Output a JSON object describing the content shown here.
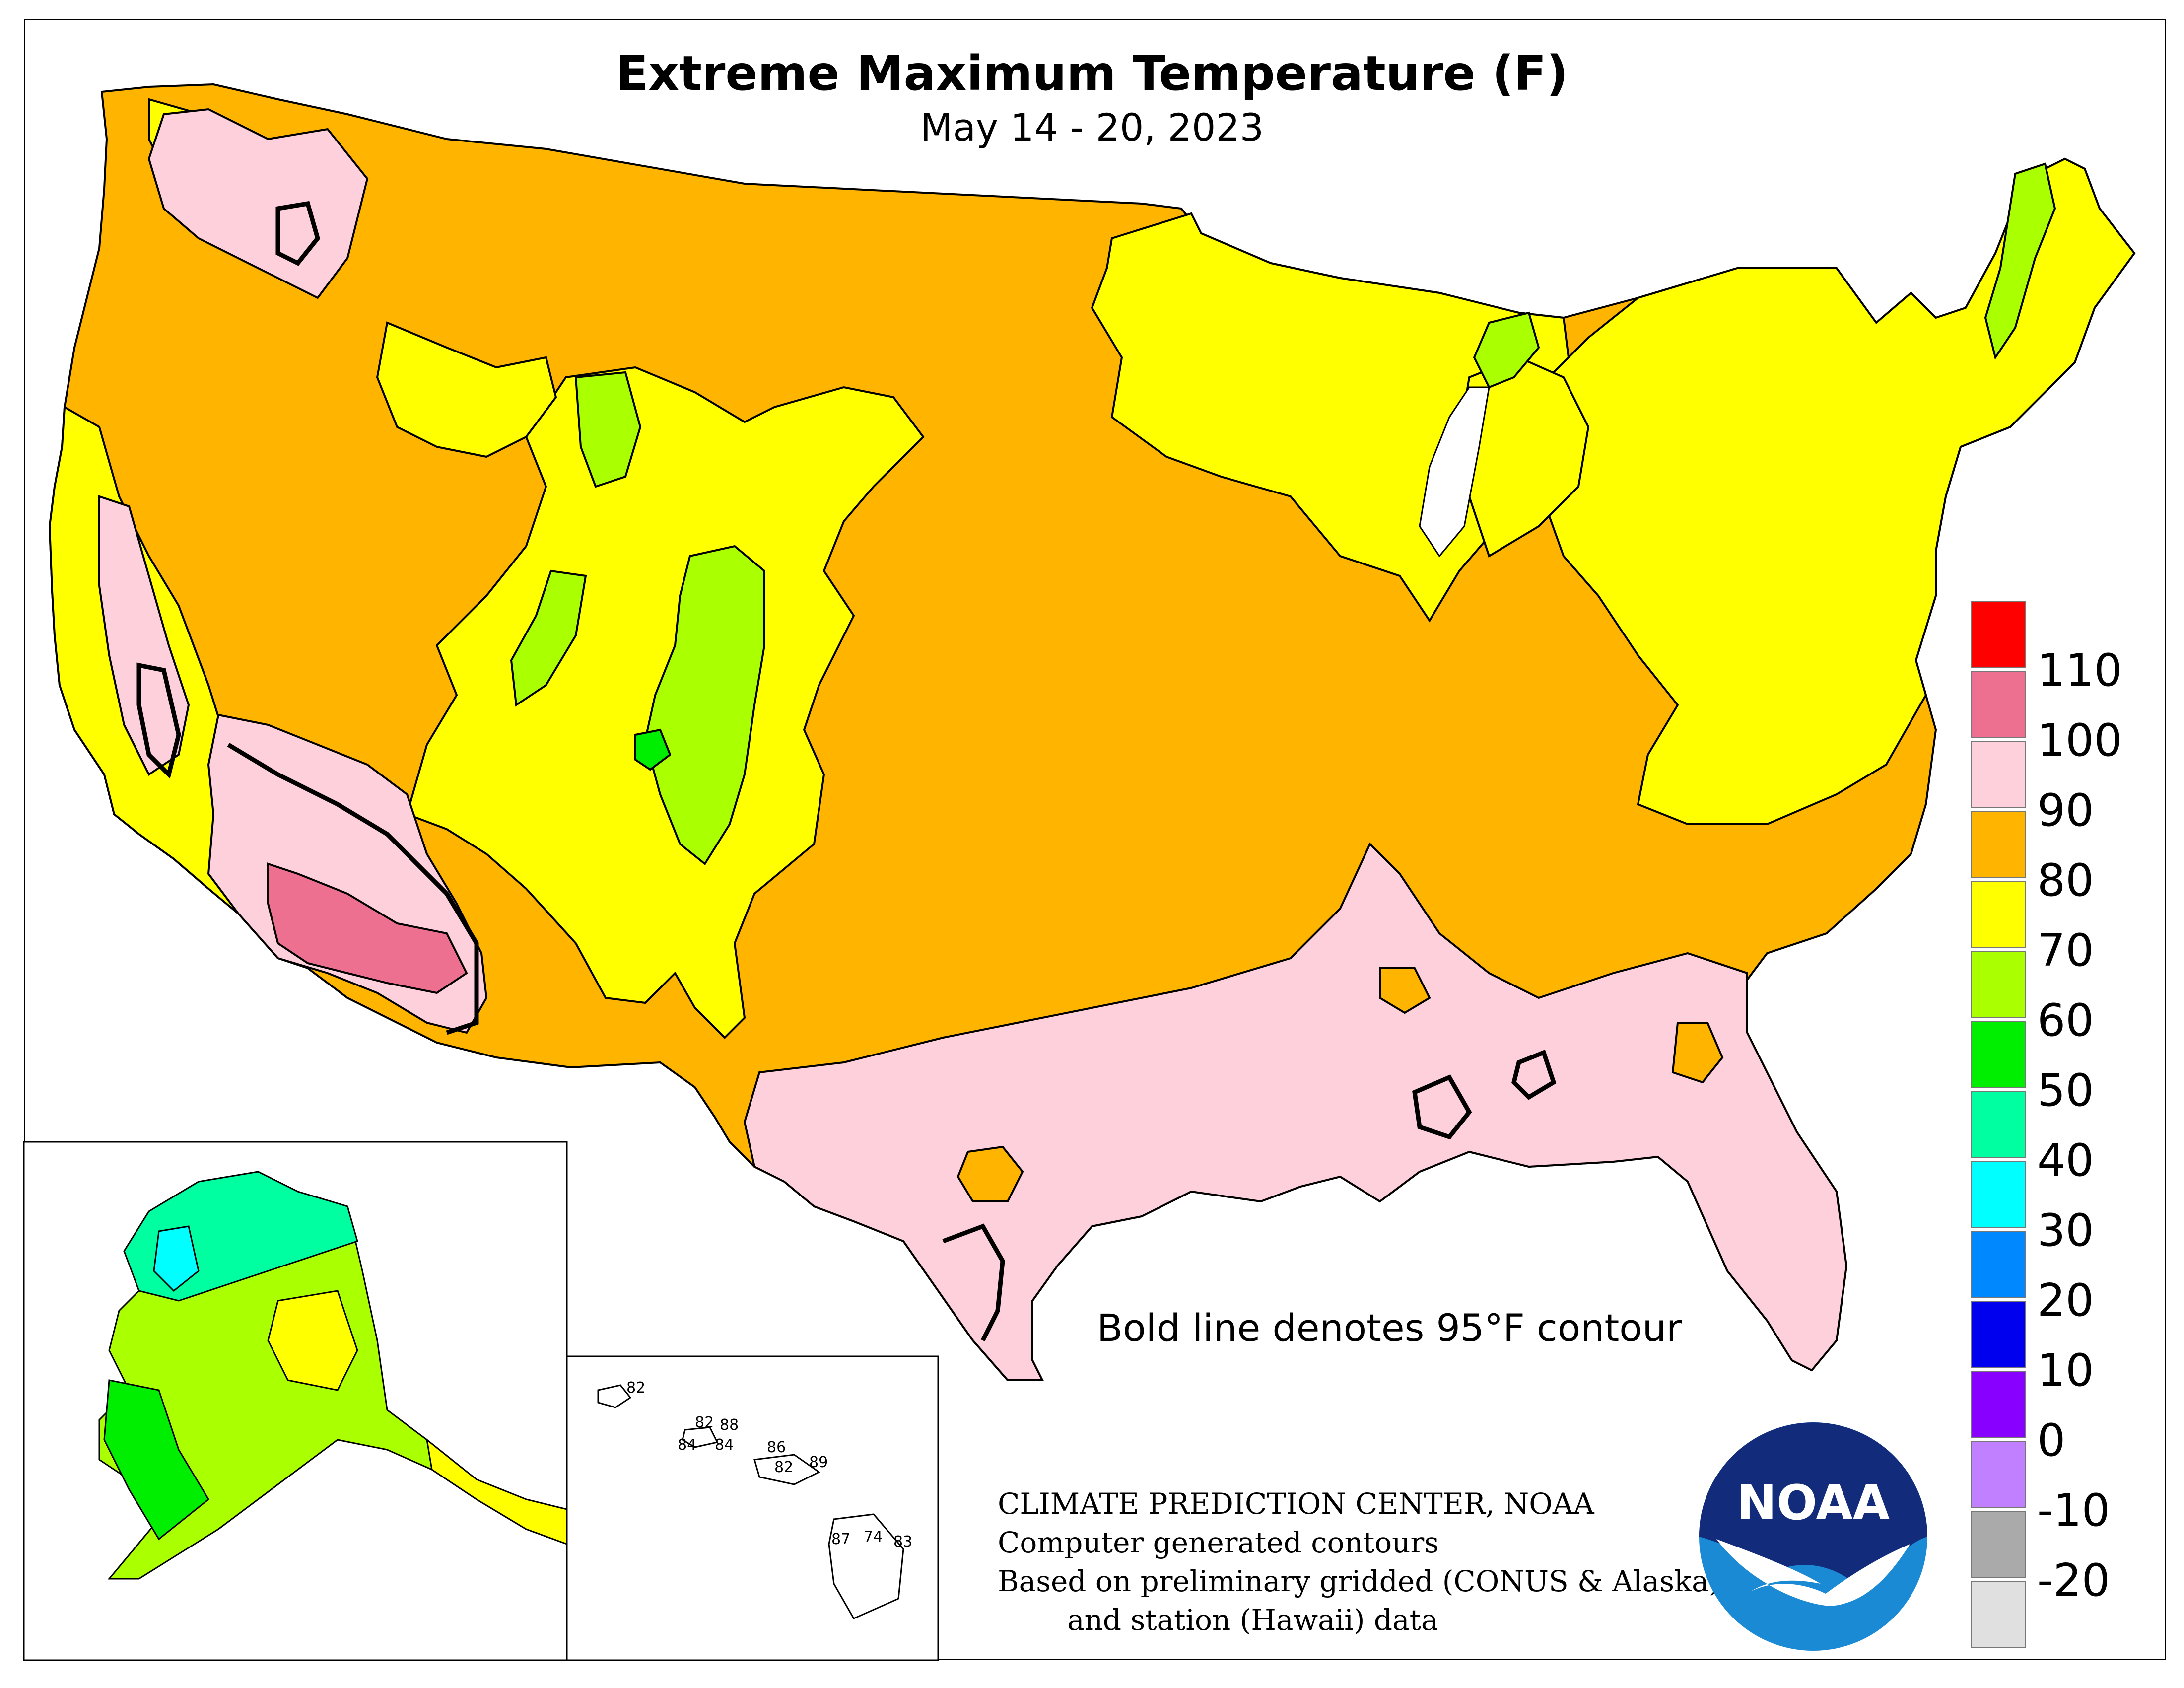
{
  "title": "Extreme Maximum Temperature (F)",
  "subtitle": "May 14 - 20, 2023",
  "note": "Bold line denotes 95°F contour",
  "credits": [
    "CLIMATE PREDICTION CENTER, NOAA",
    "Computer generated contours",
    "Based on preliminary gridded (CONUS & Alaska)",
    "and station (Hawaii) data"
  ],
  "logo_text": "NOAA",
  "legend": {
    "ticks": [
      "110",
      "100",
      "90",
      "80",
      "70",
      "60",
      "50",
      "40",
      "30",
      "20",
      "10",
      "0",
      "-10",
      "-20"
    ],
    "colors": [
      "#ff0000",
      "#ee7090",
      "#fdd0dc",
      "#ffb400",
      "#ffff00",
      "#aaff00",
      "#00ee00",
      "#00ffa0",
      "#00ffff",
      "#0088ff",
      "#0000ee",
      "#8800ff",
      "#c080ff",
      "#aaaaaa",
      "#e0e0e0"
    ]
  },
  "hawaii_stations": [
    "82",
    "82",
    "88",
    "84",
    "84",
    "86",
    "89",
    "82",
    "87",
    "74",
    "83"
  ]
}
